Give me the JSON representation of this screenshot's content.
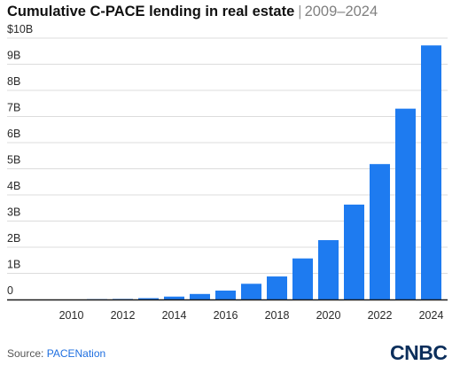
{
  "header": {
    "title": "Cumulative C-PACE lending in real estate",
    "separator": "|",
    "range": "2009–2024"
  },
  "footer": {
    "source_label": "Source:",
    "source_name": "PACENation",
    "logo_text": "CNBC"
  },
  "colors": {
    "bar": "#1e7bf0",
    "grid": "#dcdcdc",
    "axis": "#1a1a1a",
    "logo": "#0b2e5b",
    "source_link": "#1f6fe0"
  },
  "chart_data": {
    "type": "bar",
    "title": "Cumulative C-PACE lending in real estate",
    "subtitle": "2009–2024",
    "xlabel": "",
    "ylabel": "",
    "categories": [
      "2009",
      "2010",
      "2011",
      "2012",
      "2013",
      "2014",
      "2015",
      "2016",
      "2017",
      "2018",
      "2019",
      "2020",
      "2021",
      "2022",
      "2023",
      "2024"
    ],
    "values": [
      0.0,
      0.0,
      0.01,
      0.02,
      0.05,
      0.11,
      0.21,
      0.34,
      0.6,
      0.88,
      1.57,
      2.27,
      3.63,
      5.18,
      7.3,
      9.72
    ],
    "unit": "billions of dollars",
    "ylim": [
      0,
      10
    ],
    "yticks": [
      0,
      1,
      2,
      3,
      4,
      5,
      6,
      7,
      8,
      9,
      10
    ],
    "ytick_labels": [
      "0",
      "1B",
      "2B",
      "3B",
      "4B",
      "5B",
      "6B",
      "7B",
      "8B",
      "9B",
      "$10B"
    ],
    "xtick_labels": [
      "2010",
      "2012",
      "2014",
      "2016",
      "2018",
      "2020",
      "2022",
      "2024"
    ],
    "grid": true,
    "legend": "none"
  }
}
